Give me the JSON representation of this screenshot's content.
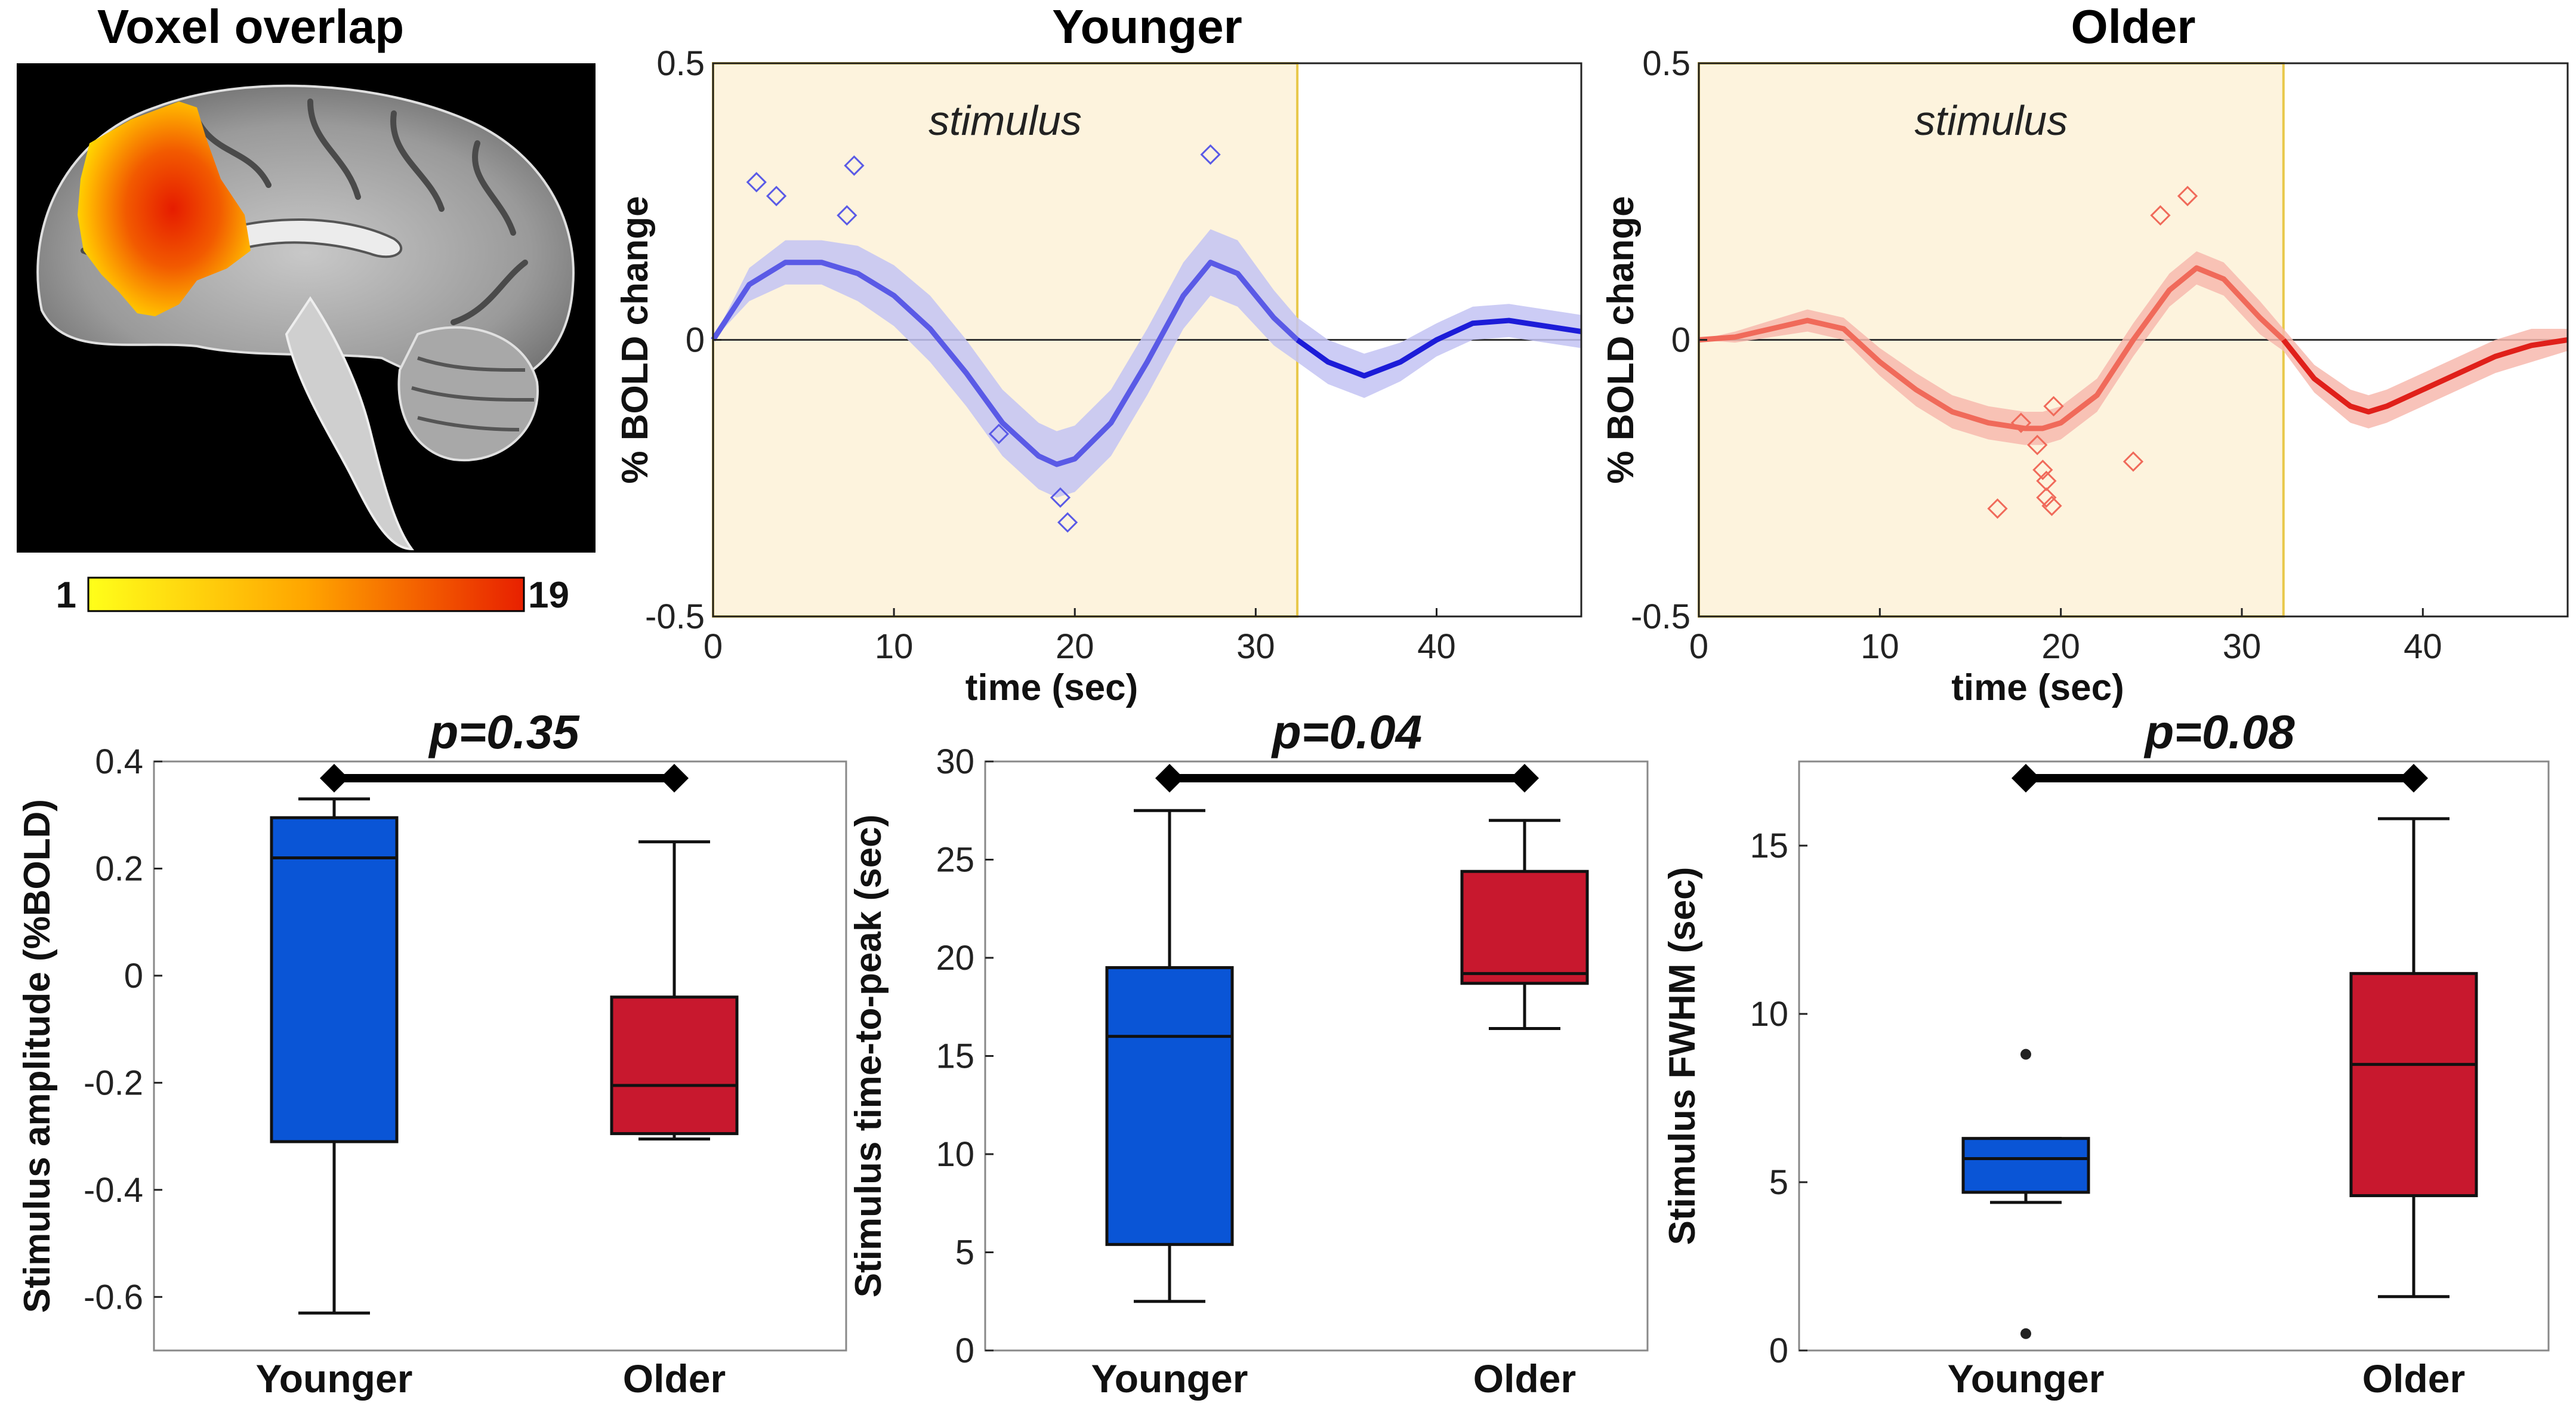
{
  "colors": {
    "younger": "#5a5ae6",
    "younger_band": "#c3c3f3",
    "younger_dark": "#1c1cd8",
    "older": "#f06a5a",
    "older_band": "#f7b8ae",
    "older_dark": "#e0201a",
    "stimulus_fill": "#fdf3dd",
    "stimulus_edge": "#e8c84a",
    "box_younger": "#0a55d6",
    "box_older": "#c8182e"
  },
  "brain": {
    "title": "Voxel overlap",
    "colorbar_min": "1",
    "colorbar_max": "19"
  },
  "chart_data": [
    {
      "type": "line",
      "title": "Younger",
      "xlabel": "time (sec)",
      "ylabel": "% BOLD change",
      "xlim": [
        0,
        48
      ],
      "ylim": [
        -0.5,
        0.5
      ],
      "xticks": [
        "0",
        "10",
        "20",
        "30",
        "40"
      ],
      "yticks": [
        "0.5",
        "0",
        "-0.5"
      ],
      "stimulus_label": "stimulus",
      "stimulus_window": [
        0,
        32.3
      ],
      "curve": {
        "x": [
          0,
          2,
          4,
          6,
          8,
          10,
          12,
          14,
          16,
          18,
          19,
          20,
          22,
          24,
          26,
          27.5,
          29,
          31,
          32.3,
          34,
          36,
          38,
          40,
          42,
          44,
          46,
          48
        ],
        "y": [
          0.0,
          0.1,
          0.14,
          0.14,
          0.12,
          0.08,
          0.02,
          -0.06,
          -0.15,
          -0.21,
          -0.225,
          -0.215,
          -0.15,
          -0.04,
          0.08,
          0.14,
          0.12,
          0.04,
          0.0,
          -0.04,
          -0.065,
          -0.04,
          0.0,
          0.03,
          0.035,
          0.025,
          0.015
        ]
      },
      "band_halfwidth": [
        0.0,
        0.03,
        0.04,
        0.04,
        0.05,
        0.055,
        0.06,
        0.06,
        0.06,
        0.06,
        0.06,
        0.06,
        0.06,
        0.06,
        0.06,
        0.06,
        0.06,
        0.05,
        0.04,
        0.04,
        0.04,
        0.035,
        0.03,
        0.03,
        0.03,
        0.03,
        0.03
      ],
      "peak_markers": {
        "x": [
          2.4,
          3.5,
          7.4,
          7.8,
          15.8,
          19.2,
          19.6,
          27.5
        ],
        "y": [
          0.285,
          0.26,
          0.225,
          0.315,
          -0.17,
          -0.285,
          -0.33,
          0.335
        ]
      }
    },
    {
      "type": "line",
      "title": "Older",
      "xlabel": "time (sec)",
      "ylabel": "% BOLD change",
      "xlim": [
        0,
        48
      ],
      "ylim": [
        -0.5,
        0.5
      ],
      "xticks": [
        "0",
        "10",
        "20",
        "30",
        "40"
      ],
      "yticks": [
        "0.5",
        "0",
        "-0.5"
      ],
      "stimulus_label": "stimulus",
      "stimulus_window": [
        0,
        32.3
      ],
      "curve": {
        "x": [
          0,
          2,
          4,
          6,
          8,
          10,
          12,
          14,
          16,
          18,
          19,
          20,
          22,
          24,
          26,
          27.5,
          29,
          31,
          32.3,
          34,
          36,
          37,
          38,
          40,
          42,
          44,
          46,
          48
        ],
        "y": [
          0.0,
          0.005,
          0.02,
          0.035,
          0.02,
          -0.04,
          -0.09,
          -0.13,
          -0.15,
          -0.16,
          -0.16,
          -0.15,
          -0.1,
          0.0,
          0.09,
          0.13,
          0.11,
          0.04,
          0.0,
          -0.07,
          -0.12,
          -0.13,
          -0.12,
          -0.09,
          -0.06,
          -0.03,
          -0.01,
          0.0
        ]
      },
      "band_halfwidth": [
        0.0,
        0.01,
        0.015,
        0.02,
        0.02,
        0.025,
        0.03,
        0.03,
        0.03,
        0.03,
        0.03,
        0.03,
        0.03,
        0.03,
        0.03,
        0.03,
        0.03,
        0.03,
        0.02,
        0.025,
        0.03,
        0.03,
        0.03,
        0.03,
        0.03,
        0.03,
        0.03,
        0.02
      ],
      "peak_markers": {
        "x": [
          16.5,
          17.8,
          18.7,
          19.0,
          19.2,
          19.2,
          19.5,
          19.6,
          24.0,
          25.5,
          27.0
        ],
        "y": [
          -0.305,
          -0.15,
          -0.19,
          -0.235,
          -0.285,
          -0.255,
          -0.3,
          -0.12,
          -0.22,
          0.225,
          0.26
        ]
      }
    },
    {
      "type": "box",
      "ylabel": "Stimulus amplitude (%BOLD)",
      "categories": [
        "Younger",
        "Older"
      ],
      "ylim": [
        -0.7,
        0.4
      ],
      "yticks": [
        "0.4",
        "0.2",
        "0",
        "-0.2",
        "-0.4",
        "-0.6"
      ],
      "yticks_values": [
        0.4,
        0.2,
        0,
        -0.2,
        -0.4,
        -0.6
      ],
      "p_value": "p=0.35",
      "boxes": [
        {
          "min": -0.63,
          "q1": -0.31,
          "median": 0.22,
          "q3": 0.295,
          "max": 0.33,
          "outliers": []
        },
        {
          "min": -0.305,
          "q1": -0.295,
          "median": -0.205,
          "q3": -0.04,
          "max": 0.25,
          "outliers": []
        }
      ]
    },
    {
      "type": "box",
      "ylabel": "Stimulus time-to-peak (sec)",
      "categories": [
        "Younger",
        "Older"
      ],
      "ylim": [
        0,
        30
      ],
      "yticks": [
        "0",
        "5",
        "10",
        "15",
        "20",
        "25",
        "30"
      ],
      "yticks_values": [
        0,
        5,
        10,
        15,
        20,
        25,
        30
      ],
      "p_value": "p=0.04",
      "boxes": [
        {
          "min": 2.5,
          "q1": 5.4,
          "median": 16.0,
          "q3": 19.5,
          "max": 27.5,
          "outliers": []
        },
        {
          "min": 16.4,
          "q1": 18.7,
          "median": 19.2,
          "q3": 24.4,
          "max": 27.0,
          "outliers": []
        }
      ]
    },
    {
      "type": "box",
      "ylabel": "Stimulus FWHM (sec)",
      "categories": [
        "Younger",
        "Older"
      ],
      "ylim": [
        0,
        17.5
      ],
      "yticks": [
        "0",
        "5",
        "10",
        "15"
      ],
      "yticks_values": [
        0,
        5,
        10,
        15
      ],
      "p_value": "p=0.08",
      "boxes": [
        {
          "min": 4.4,
          "q1": 4.7,
          "median": 5.7,
          "q3": 6.3,
          "max": 6.3,
          "outliers": [
            8.8,
            0.5
          ]
        },
        {
          "min": 1.6,
          "q1": 4.6,
          "median": 8.5,
          "q3": 11.2,
          "max": 15.8,
          "outliers": []
        }
      ]
    }
  ]
}
